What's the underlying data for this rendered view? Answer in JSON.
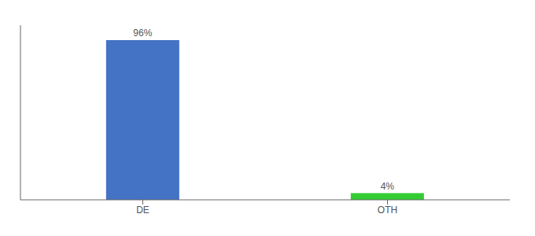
{
  "chart_data": {
    "type": "bar",
    "categories": [
      "DE",
      "OTH"
    ],
    "values": [
      96,
      4
    ],
    "value_labels": [
      "96%",
      "4%"
    ],
    "data_labels": true,
    "colors": [
      "#4472c4",
      "#33cc33"
    ],
    "ylim": [
      0,
      105
    ],
    "tick_labels": "x",
    "grid": false
  }
}
